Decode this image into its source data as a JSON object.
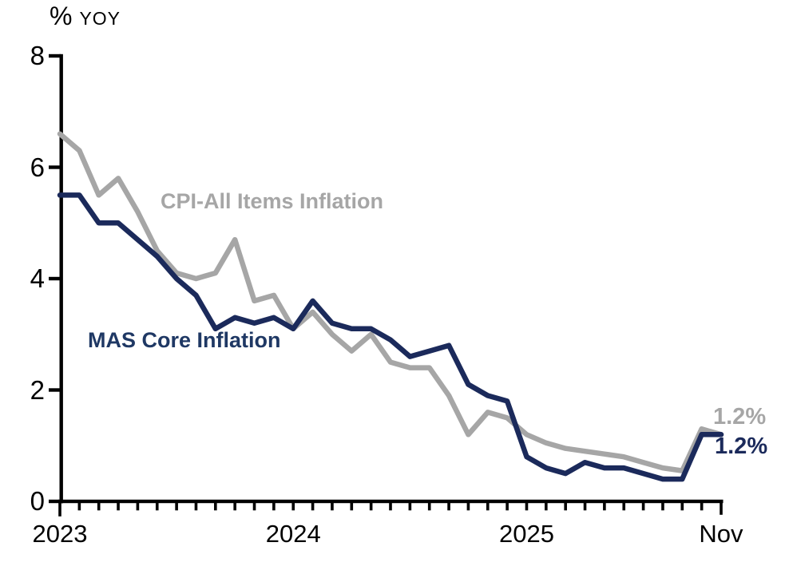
{
  "chart_data": {
    "type": "line",
    "title": "",
    "ylabel_percent": "%",
    "ylabel_unit": "YOY",
    "ylim": [
      0,
      8
    ],
    "yticks": [
      0,
      2,
      4,
      6,
      8
    ],
    "ytick_labels": [
      "0",
      "2",
      "4",
      "6",
      "8"
    ],
    "grid": false,
    "legend_position": "inline-labels",
    "x_tick_labels": [
      {
        "label": "2023",
        "month_index": 0
      },
      {
        "label": "2024",
        "month_index": 12
      },
      {
        "label": "2025",
        "month_index": 24
      },
      {
        "label": "Nov",
        "month_index": 34
      }
    ],
    "months": [
      "2023-01",
      "2023-02",
      "2023-03",
      "2023-04",
      "2023-05",
      "2023-06",
      "2023-07",
      "2023-08",
      "2023-09",
      "2023-10",
      "2023-11",
      "2023-12",
      "2024-01",
      "2024-02",
      "2024-03",
      "2024-04",
      "2024-05",
      "2024-06",
      "2024-07",
      "2024-08",
      "2024-09",
      "2024-10",
      "2024-11",
      "2024-12",
      "2025-01",
      "2025-02",
      "2025-03",
      "2025-04",
      "2025-05",
      "2025-06",
      "2025-07",
      "2025-08",
      "2025-09",
      "2025-10",
      "2025-11"
    ],
    "series": [
      {
        "name": "CPI-All Items Inflation",
        "color": "#A6A6A6",
        "end_label": "1.2%",
        "values": [
          6.6,
          6.3,
          5.5,
          5.8,
          5.2,
          4.5,
          4.1,
          4.0,
          4.1,
          4.7,
          3.6,
          3.7,
          3.1,
          3.4,
          3.0,
          2.7,
          3.0,
          2.5,
          2.4,
          2.4,
          1.9,
          1.2,
          1.6,
          1.5,
          1.2,
          1.05,
          0.95,
          0.9,
          0.85,
          0.8,
          0.7,
          0.6,
          0.55,
          1.3,
          1.2
        ]
      },
      {
        "name": "MAS Core Inflation",
        "color": "#1B2A5B",
        "label_color": "#1F3864",
        "end_label": "1.2%",
        "values": [
          5.5,
          5.5,
          5.0,
          5.0,
          4.7,
          4.4,
          4.0,
          3.7,
          3.1,
          3.3,
          3.2,
          3.3,
          3.1,
          3.6,
          3.2,
          3.1,
          3.1,
          2.9,
          2.6,
          2.7,
          2.8,
          2.1,
          1.9,
          1.8,
          0.8,
          0.6,
          0.5,
          0.7,
          0.6,
          0.6,
          0.5,
          0.4,
          0.4,
          1.2,
          1.2
        ]
      }
    ],
    "axis_color": "#000000"
  }
}
